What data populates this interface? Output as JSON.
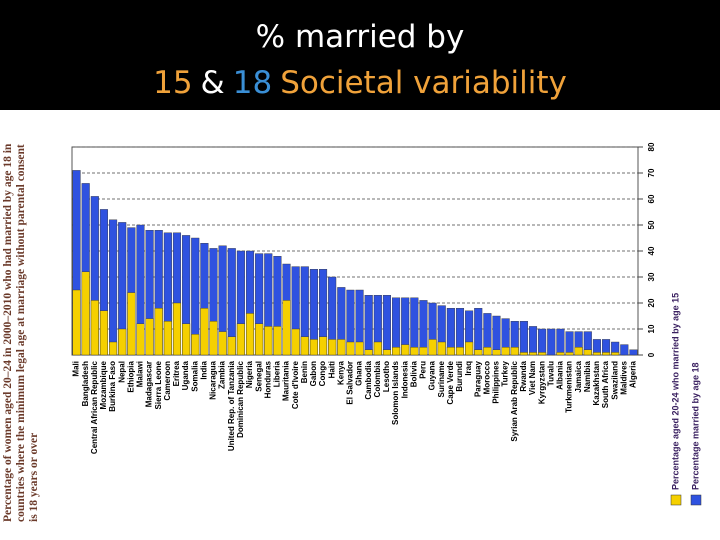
{
  "chart_data": {
    "type": "bar",
    "title": "% married by",
    "subtitle_parts": [
      {
        "text": "15",
        "color": "#f0a23a"
      },
      {
        "text": "&",
        "color": "#ffffff"
      },
      {
        "text": "18",
        "color": "#3a8fd6"
      },
      {
        "text": "Societal variability",
        "color": "#f0a23a"
      }
    ],
    "y_label": "Percentage of women aged 20–24 in 2000–2010 who had married by age 18 in countries where the minimum legal age at marriage without parental consent is 18 years or over",
    "categories": [
      "Mali",
      "Bangladesh",
      "Central African Republic",
      "Mozambique",
      "Burkina Faso",
      "Nepal",
      "Ethiopia",
      "Malawi",
      "Madagascar",
      "Sierra Leone",
      "Cameroon",
      "Eritrea",
      "Uganda",
      "Somalia",
      "India",
      "Nicaragua",
      "Zambia",
      "United Rep. of Tanzania",
      "Dominican Republic",
      "Nigeria",
      "Senegal",
      "Honduras",
      "Liberia",
      "Mauritania",
      "Cote d'Ivoire",
      "Benin",
      "Gabon",
      "Congo",
      "Haiti",
      "Kenya",
      "El Salvador",
      "Ghana",
      "Cambodia",
      "Colombia",
      "Lesotho",
      "Solomon Islands",
      "Indonesia",
      "Bolivia",
      "Peru",
      "Guyana",
      "Suriname",
      "Cape Verde",
      "Burundi",
      "Iraq",
      "Paraguay",
      "Morocco",
      "Philippines",
      "Turkey",
      "Syrian Arab Republic",
      "Rwanda",
      "Viet Nam",
      "Kyrgyzstan",
      "Tuvalu",
      "Albania",
      "Turkmenistan",
      "Jamaica",
      "Namibia",
      "Kazakhstan",
      "South Africa",
      "Swaziland",
      "Maldives",
      "Algeria"
    ],
    "series": [
      {
        "name": "Percentage married by age 18",
        "color": "#2f52e0",
        "values": [
          71,
          66,
          61,
          56,
          52,
          51,
          49,
          50,
          48,
          48,
          47,
          47,
          46,
          45,
          43,
          41,
          42,
          41,
          40,
          40,
          39,
          39,
          38,
          35,
          34,
          34,
          33,
          33,
          30,
          26,
          25,
          25,
          23,
          23,
          23,
          22,
          22,
          22,
          21,
          20,
          19,
          18,
          18,
          17,
          18,
          16,
          15,
          14,
          13,
          13,
          11,
          10,
          10,
          10,
          9,
          9,
          9,
          6,
          6,
          5,
          4,
          2
        ]
      },
      {
        "name": "Percentage aged 20-24 who married by age 15",
        "color": "#f5d000",
        "values": [
          25,
          32,
          21,
          17,
          5,
          10,
          24,
          12,
          14,
          18,
          13,
          20,
          12,
          8,
          18,
          13,
          9,
          7,
          12,
          16,
          12,
          11,
          11,
          21,
          10,
          7,
          6,
          7,
          6,
          6,
          5,
          5,
          2,
          5,
          2,
          3,
          4,
          3,
          3,
          6,
          5,
          3,
          3,
          5,
          2,
          3,
          2,
          3,
          3,
          1,
          1,
          1,
          0,
          1,
          1,
          3,
          2,
          1,
          1,
          1,
          0,
          0
        ]
      }
    ],
    "ylim": [
      0,
      80
    ],
    "yticks": [
      0,
      10,
      20,
      30,
      40,
      50,
      60,
      70,
      80
    ],
    "grid": true,
    "overlay": true
  }
}
